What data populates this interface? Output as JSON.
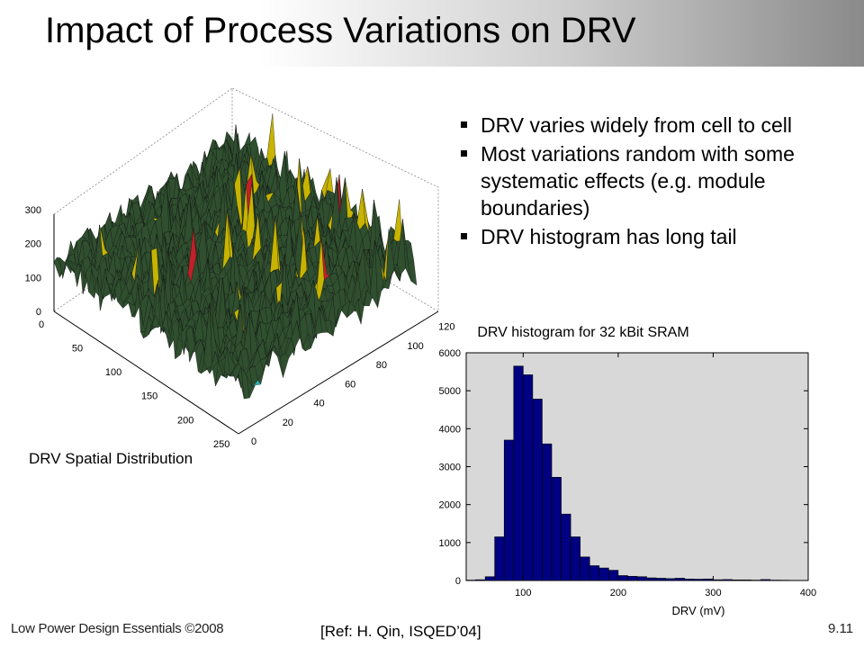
{
  "slide": {
    "title": "Impact of Process Variations on DRV",
    "bullets": [
      "DRV varies widely from cell to cell",
      "Most variations random with some systematic effects (e.g. module boundaries)",
      "DRV histogram has long tail"
    ],
    "spatial_caption": "DRV Spatial Distribution",
    "footer_left": "Low Power Design Essentials ©2008",
    "footer_ref": "[Ref: H. Qin, ISQED’04]",
    "page_number": "9.11"
  },
  "colors": {
    "bar_fill": "#000080",
    "plot_background": "#d8d8d8",
    "surface_main": "#2f4f2f",
    "surface_teal": "#2fb0b0",
    "surface_peak": "#c0202a",
    "surface_yellow": "#c8b400"
  },
  "chart_data": [
    {
      "type": "histogram",
      "title": "DRV histogram for 32 kBit SRAM",
      "xlabel": "DRV (mV)",
      "ylabel": "",
      "xlim": [
        40,
        400
      ],
      "ylim": [
        0,
        6000
      ],
      "xticks": [
        100,
        200,
        300,
        400
      ],
      "yticks": [
        0,
        1000,
        2000,
        3000,
        4000,
        5000,
        6000
      ],
      "bin_width": 10,
      "bin_starts": [
        40,
        50,
        60,
        70,
        80,
        90,
        100,
        110,
        120,
        130,
        140,
        150,
        160,
        170,
        180,
        190,
        200,
        210,
        220,
        230,
        240,
        250,
        260,
        270,
        280,
        290,
        300,
        310,
        320,
        330,
        340,
        350,
        360,
        370,
        380,
        390
      ],
      "values": [
        10,
        20,
        100,
        1150,
        3700,
        5650,
        5420,
        4780,
        3600,
        2720,
        1750,
        1150,
        620,
        390,
        330,
        270,
        130,
        110,
        100,
        70,
        60,
        50,
        60,
        40,
        35,
        40,
        20,
        25,
        15,
        15,
        10,
        25,
        10,
        8,
        5,
        5
      ],
      "grid": false,
      "legend": "none"
    },
    {
      "type": "surface3d",
      "title": "DRV Spatial Distribution",
      "x_ticks": [
        0,
        50,
        100,
        150,
        200,
        250
      ],
      "y_ticks": [
        0,
        20,
        40,
        60,
        80,
        100,
        120
      ],
      "z_ticks": [
        0,
        100,
        200,
        300
      ],
      "xlim": [
        0,
        256
      ],
      "ylim": [
        0,
        128
      ],
      "zlim": [
        0,
        320
      ]
    }
  ]
}
